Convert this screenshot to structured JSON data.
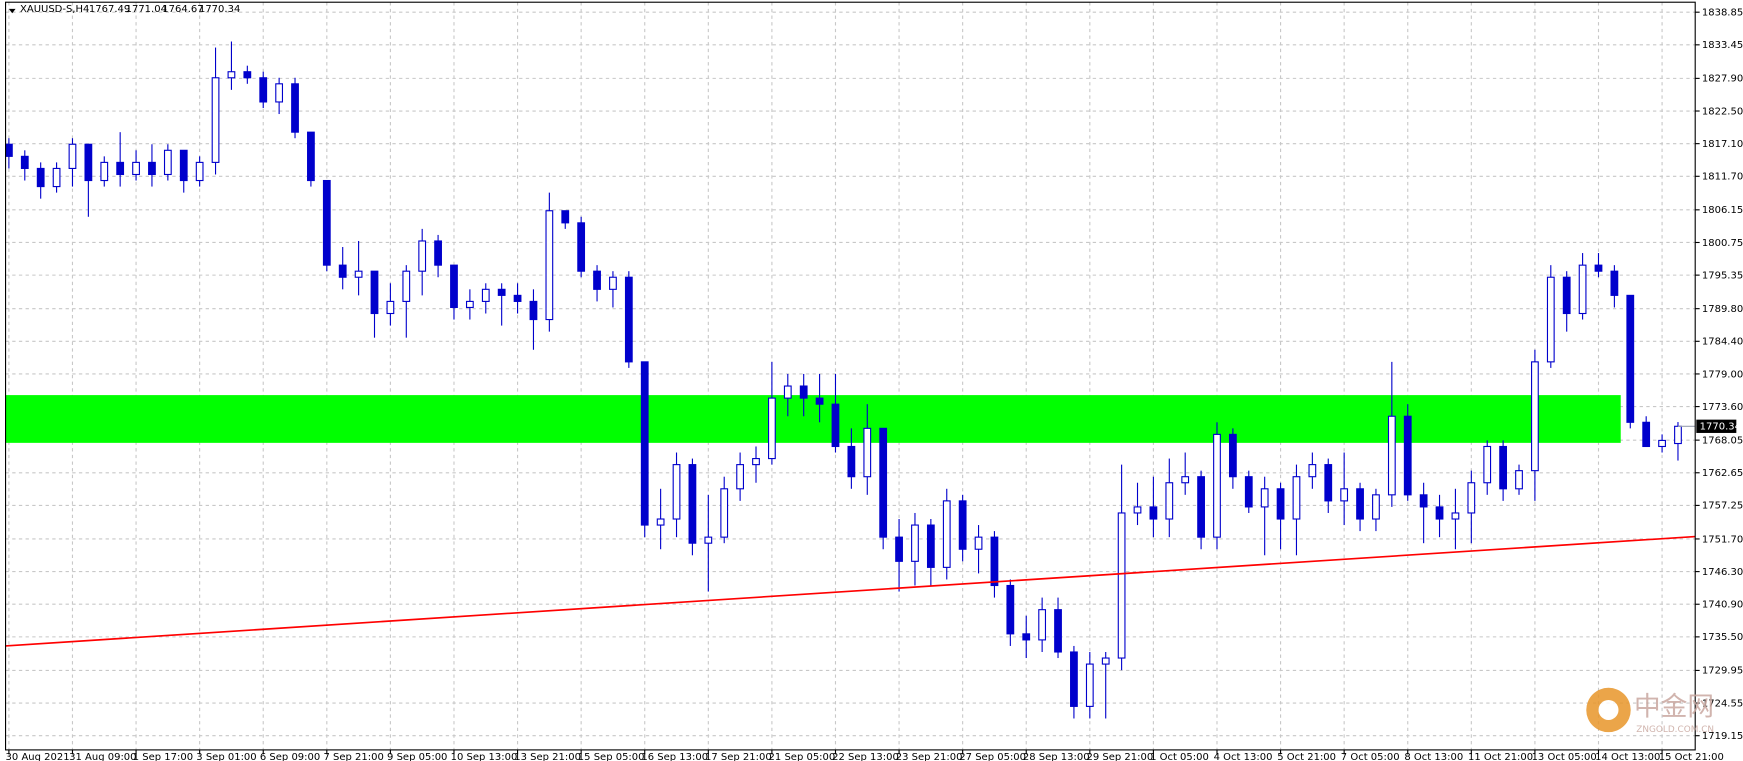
{
  "chart_data": {
    "type": "candlestick",
    "symbol": "XAUUSD-S,H4",
    "x": [
      "30 Aug 2021",
      null,
      null,
      null,
      "31 Aug 09:00",
      null,
      null,
      null,
      "1 Sep 17:00",
      null,
      null,
      null,
      "3 Sep 01:00",
      null,
      null,
      null,
      "6 Sep 09:00",
      null,
      null,
      null,
      "7 Sep 21:00",
      null,
      null,
      null,
      "9 Sep 05:00",
      null,
      null,
      null,
      "10 Sep 13:00",
      null,
      null,
      null,
      "13 Sep 21:00",
      null,
      null,
      null,
      "15 Sep 05:00",
      null,
      null,
      null,
      "16 Sep 13:00",
      null,
      null,
      null,
      "17 Sep 21:00",
      null,
      null,
      null,
      "21 Sep 05:00",
      null,
      null,
      null,
      "22 Sep 13:00",
      null,
      null,
      null,
      "23 Sep 21:00",
      null,
      null,
      null,
      "27 Sep 05:00",
      null,
      null,
      null,
      "28 Sep 13:00",
      null,
      null,
      null,
      "29 Sep 21:00",
      null,
      null,
      null,
      "1 Oct 05:00",
      null,
      null,
      null,
      "4 Oct 13:00",
      null,
      null,
      null,
      "5 Oct 21:00",
      null,
      null,
      null,
      "7 Oct 05:00",
      null,
      null,
      null,
      "8 Oct 13:00",
      null,
      null,
      null,
      "11 Oct 21:00",
      null,
      null,
      null,
      "13 Oct 05:00",
      null,
      null,
      null,
      "14 Oct 13:00",
      null,
      null,
      null,
      "15 Oct 21:00",
      null
    ],
    "ohlc": [
      [
        1817,
        1818,
        1813,
        1815
      ],
      [
        1815,
        1816,
        1811,
        1813
      ],
      [
        1813,
        1814,
        1808,
        1810
      ],
      [
        1810,
        1814,
        1809,
        1813
      ],
      [
        1813,
        1818,
        1810,
        1817
      ],
      [
        1817,
        1817,
        1805,
        1811
      ],
      [
        1811,
        1815,
        1810,
        1814
      ],
      [
        1814,
        1819,
        1810,
        1812
      ],
      [
        1812,
        1816,
        1811,
        1814
      ],
      [
        1814,
        1817,
        1810,
        1812
      ],
      [
        1812,
        1817,
        1811,
        1816
      ],
      [
        1816,
        1816,
        1809,
        1811
      ],
      [
        1811,
        1815,
        1810,
        1814
      ],
      [
        1814,
        1833,
        1812,
        1828
      ],
      [
        1828,
        1834,
        1826,
        1829
      ],
      [
        1829,
        1830,
        1827,
        1828
      ],
      [
        1828,
        1829,
        1823,
        1824
      ],
      [
        1824,
        1828,
        1822,
        1827
      ],
      [
        1827,
        1828,
        1818,
        1819
      ],
      [
        1819,
        1819,
        1810,
        1811
      ],
      [
        1811,
        1811,
        1796,
        1797
      ],
      [
        1797,
        1800,
        1793,
        1795
      ],
      [
        1795,
        1801,
        1792,
        1796
      ],
      [
        1796,
        1796,
        1785,
        1789
      ],
      [
        1789,
        1794,
        1787,
        1791
      ],
      [
        1791,
        1797,
        1785,
        1796
      ],
      [
        1796,
        1803,
        1792,
        1801
      ],
      [
        1801,
        1802,
        1795,
        1797
      ],
      [
        1797,
        1797,
        1788,
        1790
      ],
      [
        1790,
        1793,
        1788,
        1791
      ],
      [
        1791,
        1794,
        1789,
        1793
      ],
      [
        1793,
        1794,
        1787,
        1792
      ],
      [
        1792,
        1794,
        1789,
        1791
      ],
      [
        1791,
        1793,
        1783,
        1788
      ],
      [
        1788,
        1809,
        1786,
        1806
      ],
      [
        1806,
        1806,
        1803,
        1804
      ],
      [
        1804,
        1805,
        1795,
        1796
      ],
      [
        1796,
        1797,
        1791,
        1793
      ],
      [
        1793,
        1796,
        1790,
        1795
      ],
      [
        1795,
        1796,
        1780,
        1781
      ],
      [
        1781,
        1781,
        1752,
        1754
      ],
      [
        1754,
        1760,
        1750,
        1755
      ],
      [
        1755,
        1766,
        1752,
        1764
      ],
      [
        1764,
        1765,
        1749,
        1751
      ],
      [
        1751,
        1759,
        1743,
        1752
      ],
      [
        1752,
        1762,
        1751,
        1760
      ],
      [
        1760,
        1766,
        1758,
        1764
      ],
      [
        1764,
        1767,
        1761,
        1765
      ],
      [
        1765,
        1781,
        1764,
        1775
      ],
      [
        1775,
        1779,
        1772,
        1777
      ],
      [
        1777,
        1779,
        1772,
        1775
      ],
      [
        1775,
        1779,
        1771,
        1774
      ],
      [
        1774,
        1779,
        1766,
        1767
      ],
      [
        1767,
        1770,
        1760,
        1762
      ],
      [
        1762,
        1774,
        1759,
        1770
      ],
      [
        1770,
        1770,
        1750,
        1752
      ],
      [
        1752,
        1755,
        1743,
        1748
      ],
      [
        1748,
        1756,
        1744,
        1754
      ],
      [
        1754,
        1755,
        1744,
        1747
      ],
      [
        1747,
        1760,
        1745,
        1758
      ],
      [
        1758,
        1759,
        1748,
        1750
      ],
      [
        1750,
        1754,
        1746,
        1752
      ],
      [
        1752,
        1753,
        1742,
        1744
      ],
      [
        1744,
        1745,
        1734,
        1736
      ],
      [
        1736,
        1739,
        1732,
        1735
      ],
      [
        1735,
        1742,
        1733,
        1740
      ],
      [
        1740,
        1742,
        1732,
        1733
      ],
      [
        1733,
        1734,
        1722,
        1724
      ],
      [
        1724,
        1733,
        1722,
        1731
      ],
      [
        1731,
        1733,
        1722,
        1732
      ],
      [
        1732,
        1764,
        1730,
        1756
      ],
      [
        1756,
        1761,
        1754,
        1757
      ],
      [
        1757,
        1762,
        1752,
        1755
      ],
      [
        1755,
        1765,
        1752,
        1761
      ],
      [
        1761,
        1766,
        1759,
        1762
      ],
      [
        1762,
        1763,
        1750,
        1752
      ],
      [
        1752,
        1771,
        1750,
        1769
      ],
      [
        1769,
        1770,
        1760,
        1762
      ],
      [
        1762,
        1763,
        1756,
        1757
      ],
      [
        1757,
        1762,
        1749,
        1760
      ],
      [
        1760,
        1761,
        1750,
        1755
      ],
      [
        1755,
        1764,
        1749,
        1762
      ],
      [
        1762,
        1766,
        1760,
        1764
      ],
      [
        1764,
        1765,
        1756,
        1758
      ],
      [
        1758,
        1766,
        1754,
        1760
      ],
      [
        1760,
        1761,
        1753,
        1755
      ],
      [
        1755,
        1760,
        1753,
        1759
      ],
      [
        1759,
        1781,
        1757,
        1772
      ],
      [
        1772,
        1774,
        1758,
        1759
      ],
      [
        1759,
        1761,
        1751,
        1757
      ],
      [
        1757,
        1759,
        1752,
        1755
      ],
      [
        1755,
        1760,
        1750,
        1756
      ],
      [
        1756,
        1763,
        1751,
        1761
      ],
      [
        1761,
        1768,
        1759,
        1767
      ],
      [
        1767,
        1768,
        1758,
        1760
      ],
      [
        1760,
        1764,
        1759,
        1763
      ],
      [
        1763,
        1783,
        1758,
        1781
      ],
      [
        1781,
        1797,
        1780,
        1795
      ],
      [
        1795,
        1796,
        1786,
        1789
      ],
      [
        1789,
        1799,
        1788,
        1797
      ],
      [
        1797,
        1799,
        1795,
        1796
      ],
      [
        1796,
        1797,
        1790,
        1792
      ],
      [
        1792,
        1792,
        1770,
        1771
      ],
      [
        1771,
        1772,
        1767,
        1767
      ],
      [
        1767,
        1769,
        1766,
        1768
      ],
      [
        1767.49,
        1771.04,
        1764.67,
        1770.34
      ]
    ],
    "color": "#0000cc",
    "ylim": [
      1716.8,
      1840.5
    ],
    "yticks": [
      1838.85,
      1833.45,
      {
        "value": 1827.9,
        "label": "1827.90"
      },
      {
        "value": 1822.5,
        "label": "1822.50"
      },
      {
        "value": 1817.1,
        "label": "1817.10"
      },
      {
        "value": 1811.7,
        "label": "1811.70"
      },
      1806.15,
      1800.75,
      1795.35,
      {
        "value": 1789.8,
        "label": "1789.80"
      },
      {
        "value": 1784.4,
        "label": "1784.40"
      },
      {
        "value": 1779,
        "label": "1779.00"
      },
      {
        "value": 1773.6,
        "label": "1773.60"
      },
      1768.05,
      1762.65,
      1757.25,
      {
        "value": 1751.7,
        "label": "1751.70"
      },
      {
        "value": 1746.3,
        "label": "1746.30"
      },
      {
        "value": 1740.9,
        "label": "1740.90"
      },
      {
        "value": 1735.5,
        "label": "1735.50"
      },
      1729.95,
      1724.55,
      1719.15
    ],
    "grid": true,
    "zone": {
      "range": [
        1767.6,
        1775.5
      ],
      "color": "#00ff00"
    },
    "trendline": {
      "values": [
        1734.0,
        1752.1
      ],
      "color": "#ff0000"
    }
  },
  "watermark": {
    "name": "中金网",
    "site": "ZNGOLD.COM.CN"
  }
}
